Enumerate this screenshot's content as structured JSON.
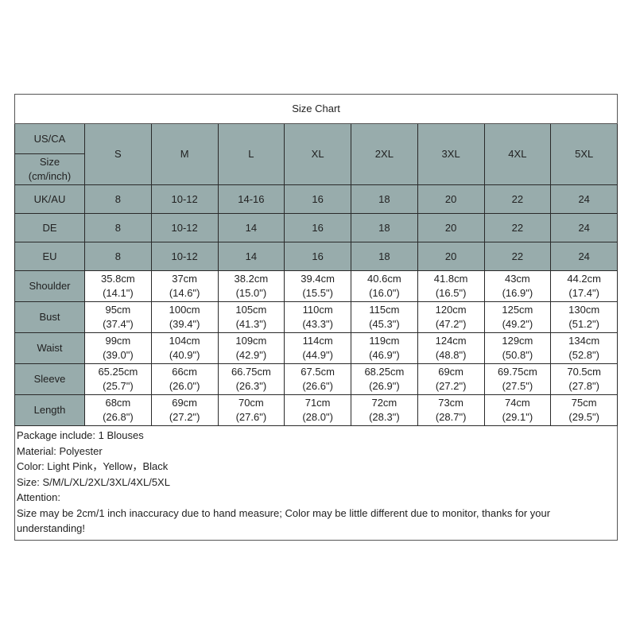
{
  "title": "Size Chart",
  "header": {
    "us_ca": "US/CA",
    "size_unit": "Size (cm/inch)",
    "sizes": [
      "S",
      "M",
      "L",
      "XL",
      "2XL",
      "3XL",
      "4XL",
      "5XL"
    ]
  },
  "region_rows": [
    {
      "label": "UK/AU",
      "values": [
        "8",
        "10-12",
        "14-16",
        "16",
        "18",
        "20",
        "22",
        "24"
      ]
    },
    {
      "label": "DE",
      "values": [
        "8",
        "10-12",
        "14",
        "16",
        "18",
        "20",
        "22",
        "24"
      ]
    },
    {
      "label": "EU",
      "values": [
        "8",
        "10-12",
        "14",
        "16",
        "18",
        "20",
        "22",
        "24"
      ]
    }
  ],
  "measure_rows": [
    {
      "label": "Shoulder",
      "cm": [
        "35.8cm",
        "37cm",
        "38.2cm",
        "39.4cm",
        "40.6cm",
        "41.8cm",
        "43cm",
        "44.2cm"
      ],
      "inch": [
        "(14.1\")",
        "(14.6\")",
        "(15.0\")",
        "(15.5\")",
        "(16.0\")",
        "(16.5\")",
        "(16.9\")",
        "(17.4\")"
      ]
    },
    {
      "label": "Bust",
      "cm": [
        "95cm",
        "100cm",
        "105cm",
        "110cm",
        "115cm",
        "120cm",
        "125cm",
        "130cm"
      ],
      "inch": [
        "(37.4\")",
        "(39.4\")",
        "(41.3\")",
        "(43.3\")",
        "(45.3\")",
        "(47.2\")",
        "(49.2\")",
        "(51.2\")"
      ]
    },
    {
      "label": "Waist",
      "cm": [
        "99cm",
        "104cm",
        "109cm",
        "114cm",
        "119cm",
        "124cm",
        "129cm",
        "134cm"
      ],
      "inch": [
        "(39.0\")",
        "(40.9\")",
        "(42.9\")",
        "(44.9\")",
        "(46.9\")",
        "(48.8\")",
        "(50.8\")",
        "(52.8\")"
      ]
    },
    {
      "label": "Sleeve",
      "cm": [
        "65.25cm",
        "66cm",
        "66.75cm",
        "67.5cm",
        "68.25cm",
        "69cm",
        "69.75cm",
        "70.5cm"
      ],
      "inch": [
        "(25.7\")",
        "(26.0\")",
        "(26.3\")",
        "(26.6\")",
        "(26.9\")",
        "(27.2\")",
        "(27.5\")",
        "(27.8\")"
      ]
    },
    {
      "label": "Length",
      "cm": [
        "68cm",
        "69cm",
        "70cm",
        "71cm",
        "72cm",
        "73cm",
        "74cm",
        "75cm"
      ],
      "inch": [
        "(26.8\")",
        "(27.2\")",
        "(27.6\")",
        "(28.0\")",
        "(28.3\")",
        "(28.7\")",
        "(29.1\")",
        "(29.5\")"
      ]
    }
  ],
  "notes": [
    "Package include: 1 Blouses",
    "Material: Polyester",
    "Color: Light Pink，Yellow，Black",
    "Size: S/M/L/XL/2XL/3XL/4XL/5XL",
    "Attention:",
    "Size may be 2cm/1 inch inaccuracy due to hand measure; Color may be little different due to monitor, thanks for your understanding!"
  ],
  "colors": {
    "header_bg": "#98acac",
    "border": "#2a2a2a"
  }
}
